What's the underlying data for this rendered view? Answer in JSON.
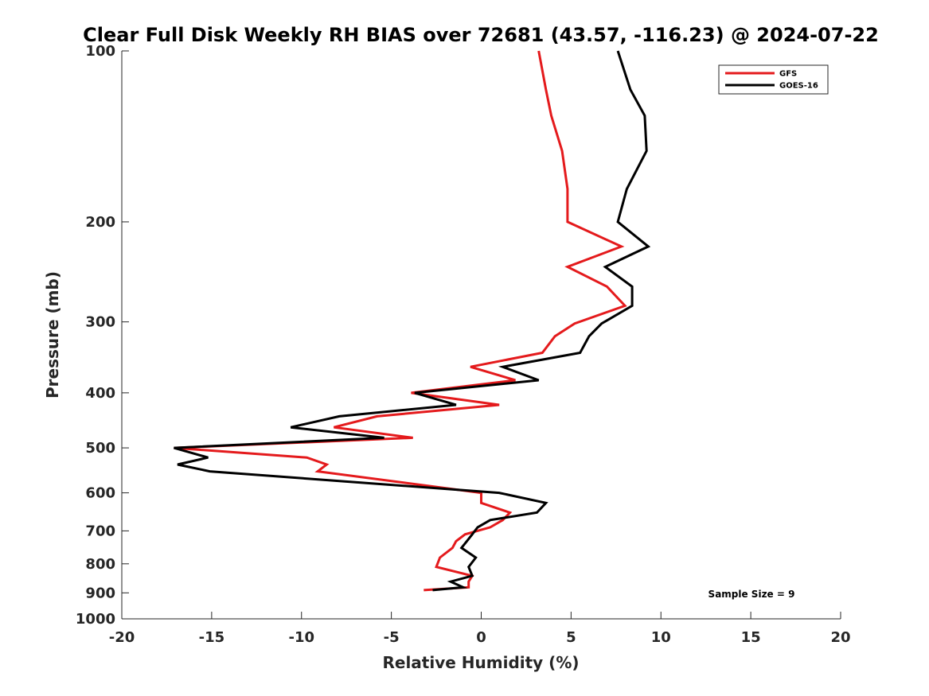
{
  "chart_data": {
    "type": "line",
    "title": "Clear Full Disk Weekly RH BIAS over 72681 (43.57, -116.23) @ 2024-07-22",
    "xlabel": "Relative Humidity (%)",
    "ylabel": "Pressure (mb)",
    "xlim": [
      -20,
      20
    ],
    "ylim": [
      100,
      1000
    ],
    "y_scale": "log",
    "y_reversed": true,
    "x_ticks": [
      "-20",
      "-15",
      "-10",
      "-5",
      "0",
      "5",
      "10",
      "15",
      "20"
    ],
    "y_ticks": [
      "100",
      "200",
      "300",
      "400",
      "500",
      "600",
      "700",
      "800",
      "900",
      "1000"
    ],
    "grid": false,
    "legend_position": "top-right",
    "annotation": "Sample Size = 9",
    "series": [
      {
        "name": "GFS",
        "color": "#e41a1c",
        "x": [
          3.2,
          3.6,
          3.9,
          4.5,
          4.8,
          4.8,
          7.8,
          4.8,
          7.0,
          8.0,
          5.2,
          4.1,
          3.4,
          -0.6,
          1.9,
          -3.9,
          1.0,
          -5.8,
          -8.2,
          -3.8,
          -17.1,
          -9.7,
          -8.6,
          -9.1,
          0.0,
          0.0,
          1.6,
          1.2,
          0.5,
          -0.9,
          -1.4,
          -1.6,
          -2.3,
          -2.5,
          -0.5,
          -0.7,
          -0.7,
          -3.2
        ],
        "y": [
          100,
          117,
          130,
          150,
          175,
          200,
          221,
          240,
          260,
          281,
          302,
          318,
          340,
          360,
          380,
          400,
          420,
          440,
          460,
          480,
          500,
          520,
          535,
          550,
          600,
          625,
          650,
          670,
          690,
          710,
          730,
          750,
          780,
          810,
          840,
          860,
          880,
          890
        ]
      },
      {
        "name": "GOES-16",
        "color": "#000000",
        "x": [
          7.6,
          8.3,
          9.1,
          9.2,
          8.1,
          7.6,
          9.3,
          6.9,
          8.4,
          8.4,
          6.7,
          6.0,
          5.5,
          1.2,
          3.2,
          -3.7,
          -1.4,
          -7.9,
          -10.6,
          -5.4,
          -17.1,
          -15.2,
          -16.9,
          -15.1,
          1.0,
          3.6,
          3.1,
          0.5,
          -0.2,
          -0.5,
          -0.8,
          -1.1,
          -0.3,
          -0.7,
          -0.5,
          -1.7,
          -1.0,
          -2.7
        ],
        "y": [
          100,
          117,
          130,
          150,
          175,
          200,
          221,
          240,
          260,
          281,
          302,
          318,
          340,
          360,
          380,
          400,
          420,
          440,
          460,
          480,
          500,
          520,
          535,
          550,
          600,
          625,
          650,
          670,
          690,
          710,
          730,
          750,
          780,
          810,
          840,
          860,
          880,
          890
        ]
      }
    ]
  }
}
